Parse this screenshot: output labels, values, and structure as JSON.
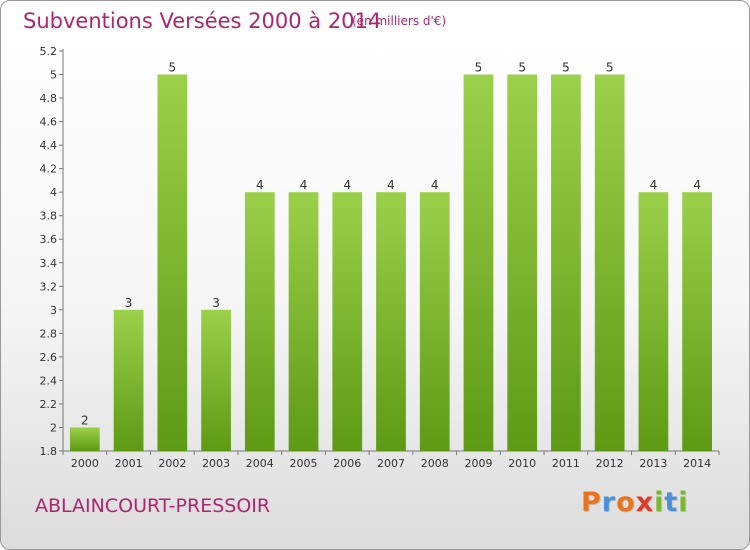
{
  "header": {
    "title": "Subventions Versées 2000 à 2014",
    "unit": "(en milliers d'€)"
  },
  "footer": {
    "commune": "ABLAINCOURT-PRESSOIR",
    "logo_text": "Proxiti",
    "logo_colors": [
      "#e8731f",
      "#4a90d9",
      "#e8731f",
      "#e03b2a",
      "#7ab82e",
      "#4a90d9",
      "#7ab82e"
    ]
  },
  "colors": {
    "title": "#b0246e",
    "bar_light": "#9bd04a",
    "bar_dark": "#5e9a14"
  },
  "chart_data": {
    "type": "bar",
    "categories": [
      "2000",
      "2001",
      "2002",
      "2003",
      "2004",
      "2005",
      "2006",
      "2007",
      "2008",
      "2009",
      "2010",
      "2011",
      "2012",
      "2013",
      "2014"
    ],
    "values": [
      2,
      3,
      5,
      3,
      4,
      4,
      4,
      4,
      4,
      5,
      5,
      5,
      5,
      4,
      4
    ],
    "data_labels": [
      "2",
      "3",
      "5",
      "3",
      "4",
      "4",
      "4",
      "4",
      "4",
      "5",
      "5",
      "5",
      "5",
      "4",
      "4"
    ],
    "y_ticks": [
      "1.8",
      "2",
      "2.2",
      "2.4",
      "2.6",
      "2.8",
      "3",
      "3.2",
      "3.4",
      "3.6",
      "3.8",
      "4",
      "4.2",
      "4.4",
      "4.6",
      "4.8",
      "5",
      "5.2"
    ],
    "title": "Subventions Versées 2000 à 2014",
    "xlabel": "",
    "ylabel": "",
    "ylim": [
      1.8,
      5.2
    ],
    "grid": false
  }
}
